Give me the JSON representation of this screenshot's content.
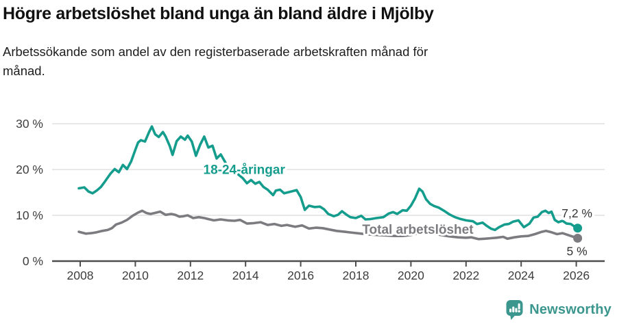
{
  "header": {
    "title": "Högre arbetslöshet bland unga än bland äldre i Mjölby",
    "subtitle_line1": "Arbetssökande som andel av den registerbaserade arbetskraften månad för",
    "subtitle_line2": "månad."
  },
  "colors": {
    "youth": "#149c8c",
    "total": "#7b7b80",
    "grid": "#d9d9d9",
    "axis": "#4d4d4d",
    "tick_label": "#3d3d3d",
    "end_label": "#333333",
    "brand": "#3b968e"
  },
  "chart_data": {
    "type": "line",
    "title": "",
    "xlabel": "",
    "ylabel": "",
    "unit": "%",
    "xlim": [
      2007.8,
      2026.6
    ],
    "ylim": [
      0,
      31
    ],
    "grid": "horizontal",
    "x_ticks": [
      2008,
      2010,
      2012,
      2014,
      2016,
      2018,
      2020,
      2022,
      2024,
      2026
    ],
    "y_ticks": [
      {
        "value": 0,
        "label": "0 %"
      },
      {
        "value": 10,
        "label": "10 %"
      },
      {
        "value": 20,
        "label": "20 %"
      },
      {
        "value": 30,
        "label": "30 %"
      }
    ],
    "series": [
      {
        "name": "18-24-åringar",
        "color_key": "youth",
        "label": {
          "text": "18-24-åringar",
          "x": 2013.95,
          "y": 20.1
        },
        "end_label": "7,2 %",
        "end_value": 7.2,
        "points": [
          [
            2007.95,
            15.9
          ],
          [
            2008.15,
            16.1
          ],
          [
            2008.3,
            15.2
          ],
          [
            2008.45,
            14.8
          ],
          [
            2008.6,
            15.4
          ],
          [
            2008.75,
            16.2
          ],
          [
            2008.9,
            17.4
          ],
          [
            2009.1,
            19.1
          ],
          [
            2009.25,
            20.1
          ],
          [
            2009.4,
            19.4
          ],
          [
            2009.55,
            21.0
          ],
          [
            2009.7,
            20.1
          ],
          [
            2009.85,
            21.8
          ],
          [
            2010.0,
            24.3
          ],
          [
            2010.1,
            25.9
          ],
          [
            2010.2,
            26.4
          ],
          [
            2010.35,
            26.1
          ],
          [
            2010.5,
            28.2
          ],
          [
            2010.6,
            29.4
          ],
          [
            2010.72,
            27.7
          ],
          [
            2010.85,
            27.1
          ],
          [
            2011.0,
            28.2
          ],
          [
            2011.1,
            27.2
          ],
          [
            2011.25,
            25.1
          ],
          [
            2011.35,
            23.2
          ],
          [
            2011.5,
            26.2
          ],
          [
            2011.65,
            27.2
          ],
          [
            2011.8,
            26.5
          ],
          [
            2011.9,
            27.4
          ],
          [
            2012.05,
            26.1
          ],
          [
            2012.2,
            23.0
          ],
          [
            2012.35,
            25.4
          ],
          [
            2012.5,
            27.2
          ],
          [
            2012.65,
            24.8
          ],
          [
            2012.8,
            25.2
          ],
          [
            2012.95,
            22.4
          ],
          [
            2013.1,
            23.3
          ],
          [
            2013.3,
            21.2
          ],
          [
            2013.6,
            19.6
          ],
          [
            2013.9,
            18.1
          ],
          [
            2014.05,
            17.0
          ],
          [
            2014.2,
            17.7
          ],
          [
            2014.35,
            16.9
          ],
          [
            2014.5,
            17.3
          ],
          [
            2014.65,
            16.2
          ],
          [
            2014.8,
            15.6
          ],
          [
            2015.0,
            14.4
          ],
          [
            2015.1,
            15.4
          ],
          [
            2015.25,
            15.6
          ],
          [
            2015.4,
            14.8
          ],
          [
            2015.6,
            15.1
          ],
          [
            2015.85,
            15.5
          ],
          [
            2016.0,
            14.0
          ],
          [
            2016.15,
            11.2
          ],
          [
            2016.3,
            12.1
          ],
          [
            2016.5,
            11.8
          ],
          [
            2016.7,
            11.9
          ],
          [
            2016.85,
            11.3
          ],
          [
            2017.0,
            10.3
          ],
          [
            2017.2,
            9.8
          ],
          [
            2017.35,
            10.1
          ],
          [
            2017.5,
            10.9
          ],
          [
            2017.65,
            10.2
          ],
          [
            2017.8,
            9.6
          ],
          [
            2018.0,
            9.4
          ],
          [
            2018.2,
            9.9
          ],
          [
            2018.35,
            9.1
          ],
          [
            2018.55,
            9.2
          ],
          [
            2018.75,
            9.4
          ],
          [
            2019.0,
            9.6
          ],
          [
            2019.2,
            10.4
          ],
          [
            2019.35,
            10.7
          ],
          [
            2019.5,
            10.3
          ],
          [
            2019.7,
            11.1
          ],
          [
            2019.85,
            11.0
          ],
          [
            2020.0,
            12.1
          ],
          [
            2020.15,
            13.7
          ],
          [
            2020.3,
            15.8
          ],
          [
            2020.42,
            15.2
          ],
          [
            2020.55,
            13.5
          ],
          [
            2020.7,
            12.5
          ],
          [
            2020.85,
            12.0
          ],
          [
            2021.0,
            11.7
          ],
          [
            2021.2,
            11.0
          ],
          [
            2021.4,
            10.2
          ],
          [
            2021.6,
            9.6
          ],
          [
            2021.8,
            9.2
          ],
          [
            2022.0,
            8.9
          ],
          [
            2022.25,
            8.7
          ],
          [
            2022.4,
            8.1
          ],
          [
            2022.6,
            8.4
          ],
          [
            2022.75,
            7.7
          ],
          [
            2022.9,
            7.1
          ],
          [
            2023.05,
            6.8
          ],
          [
            2023.2,
            7.4
          ],
          [
            2023.4,
            8.0
          ],
          [
            2023.55,
            8.1
          ],
          [
            2023.7,
            8.6
          ],
          [
            2023.9,
            8.9
          ],
          [
            2024.1,
            7.4
          ],
          [
            2024.3,
            8.2
          ],
          [
            2024.45,
            9.5
          ],
          [
            2024.6,
            9.7
          ],
          [
            2024.75,
            10.7
          ],
          [
            2024.88,
            11.0
          ],
          [
            2025.0,
            10.5
          ],
          [
            2025.1,
            10.8
          ],
          [
            2025.22,
            9.0
          ],
          [
            2025.35,
            8.5
          ],
          [
            2025.5,
            8.8
          ],
          [
            2025.65,
            8.2
          ],
          [
            2025.8,
            8.1
          ],
          [
            2025.95,
            7.5
          ],
          [
            2026.05,
            7.2
          ]
        ]
      },
      {
        "name": "Total arbetslöshet",
        "color_key": "total",
        "label": {
          "text": "Total arbetslöshet",
          "x": 2020.25,
          "y": 7.0
        },
        "end_label": "5 %",
        "end_value": 5.0,
        "points": [
          [
            2007.95,
            6.4
          ],
          [
            2008.2,
            6.0
          ],
          [
            2008.4,
            6.1
          ],
          [
            2008.6,
            6.3
          ],
          [
            2008.8,
            6.6
          ],
          [
            2009.0,
            6.8
          ],
          [
            2009.15,
            7.2
          ],
          [
            2009.3,
            8.0
          ],
          [
            2009.5,
            8.4
          ],
          [
            2009.7,
            9.0
          ],
          [
            2009.9,
            9.9
          ],
          [
            2010.1,
            10.6
          ],
          [
            2010.25,
            11.0
          ],
          [
            2010.4,
            10.5
          ],
          [
            2010.55,
            10.3
          ],
          [
            2010.7,
            10.5
          ],
          [
            2010.9,
            10.8
          ],
          [
            2011.1,
            10.1
          ],
          [
            2011.3,
            10.3
          ],
          [
            2011.45,
            10.1
          ],
          [
            2011.6,
            9.7
          ],
          [
            2011.75,
            9.8
          ],
          [
            2011.9,
            10.0
          ],
          [
            2012.1,
            9.4
          ],
          [
            2012.3,
            9.6
          ],
          [
            2012.5,
            9.4
          ],
          [
            2012.7,
            9.1
          ],
          [
            2012.85,
            8.9
          ],
          [
            2013.1,
            9.1
          ],
          [
            2013.35,
            8.9
          ],
          [
            2013.6,
            8.8
          ],
          [
            2013.8,
            9.0
          ],
          [
            2014.05,
            8.2
          ],
          [
            2014.3,
            8.3
          ],
          [
            2014.55,
            8.5
          ],
          [
            2014.8,
            7.9
          ],
          [
            2015.05,
            8.1
          ],
          [
            2015.3,
            7.7
          ],
          [
            2015.5,
            7.9
          ],
          [
            2015.8,
            7.5
          ],
          [
            2016.05,
            7.8
          ],
          [
            2016.3,
            7.1
          ],
          [
            2016.55,
            7.3
          ],
          [
            2016.8,
            7.2
          ],
          [
            2017.05,
            6.9
          ],
          [
            2017.3,
            6.6
          ],
          [
            2017.6,
            6.4
          ],
          [
            2017.9,
            6.2
          ],
          [
            2018.2,
            6.0
          ],
          [
            2018.5,
            5.8
          ],
          [
            2018.8,
            5.7
          ],
          [
            2019.1,
            5.6
          ],
          [
            2019.4,
            5.5
          ],
          [
            2019.7,
            5.5
          ],
          [
            2020.0,
            5.7
          ],
          [
            2020.3,
            6.1
          ],
          [
            2020.5,
            6.2
          ],
          [
            2020.8,
            6.0
          ],
          [
            2021.1,
            5.7
          ],
          [
            2021.4,
            5.4
          ],
          [
            2021.7,
            5.2
          ],
          [
            2022.0,
            5.1
          ],
          [
            2022.2,
            5.2
          ],
          [
            2022.45,
            4.8
          ],
          [
            2022.7,
            4.9
          ],
          [
            2022.9,
            5.0
          ],
          [
            2023.1,
            5.1
          ],
          [
            2023.35,
            5.3
          ],
          [
            2023.5,
            4.9
          ],
          [
            2023.75,
            5.2
          ],
          [
            2024.0,
            5.4
          ],
          [
            2024.25,
            5.5
          ],
          [
            2024.5,
            5.9
          ],
          [
            2024.75,
            6.4
          ],
          [
            2024.9,
            6.6
          ],
          [
            2025.1,
            6.3
          ],
          [
            2025.3,
            5.9
          ],
          [
            2025.5,
            6.1
          ],
          [
            2025.7,
            5.7
          ],
          [
            2025.9,
            5.3
          ],
          [
            2026.05,
            5.0
          ]
        ]
      }
    ]
  },
  "footer": {
    "brand": "Newsworthy"
  }
}
